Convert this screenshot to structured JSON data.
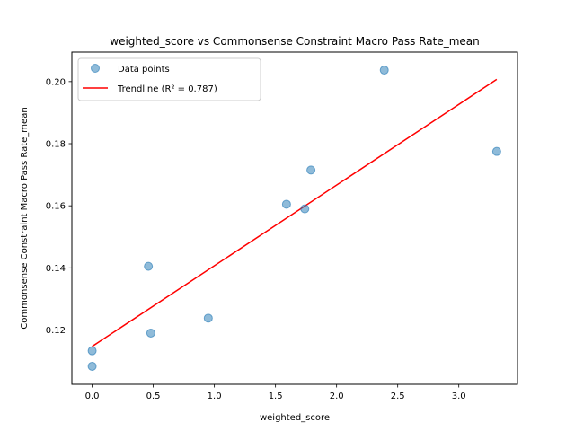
{
  "chart_data": {
    "type": "scatter",
    "title": "weighted_score vs Commonsense Constraint Macro Pass Rate_mean",
    "xlabel": "weighted_score",
    "ylabel": "Commonsense Constraint Macro Pass Rate_mean",
    "xlim": [
      -0.166,
      3.48
    ],
    "ylim": [
      0.1025,
      0.2095
    ],
    "xticks": [
      0.0,
      0.5,
      1.0,
      1.5,
      2.0,
      2.5,
      3.0
    ],
    "xtick_labels": [
      "0.0",
      "0.5",
      "1.0",
      "1.5",
      "2.0",
      "2.5",
      "3.0"
    ],
    "yticks": [
      0.12,
      0.14,
      0.16,
      0.18,
      0.2
    ],
    "ytick_labels": [
      "0.12",
      "0.14",
      "0.16",
      "0.18",
      "0.20"
    ],
    "grid": false,
    "legend_position": "top-left",
    "series": [
      {
        "name": "Data points",
        "kind": "scatter",
        "color": "#1f77b4",
        "points": [
          {
            "x": 0.0,
            "y": 0.1083
          },
          {
            "x": 0.0,
            "y": 0.1133
          },
          {
            "x": 0.46,
            "y": 0.1405
          },
          {
            "x": 0.48,
            "y": 0.119
          },
          {
            "x": 0.95,
            "y": 0.1238
          },
          {
            "x": 1.59,
            "y": 0.1605
          },
          {
            "x": 1.74,
            "y": 0.159
          },
          {
            "x": 1.79,
            "y": 0.1715
          },
          {
            "x": 2.39,
            "y": 0.2037
          },
          {
            "x": 3.31,
            "y": 0.1775
          }
        ]
      },
      {
        "name": "Trendline (R² = 0.787)",
        "kind": "line",
        "color": "#ff0000",
        "points": [
          {
            "x": 0.0,
            "y": 0.1147
          },
          {
            "x": 3.31,
            "y": 0.2007
          }
        ]
      }
    ]
  }
}
